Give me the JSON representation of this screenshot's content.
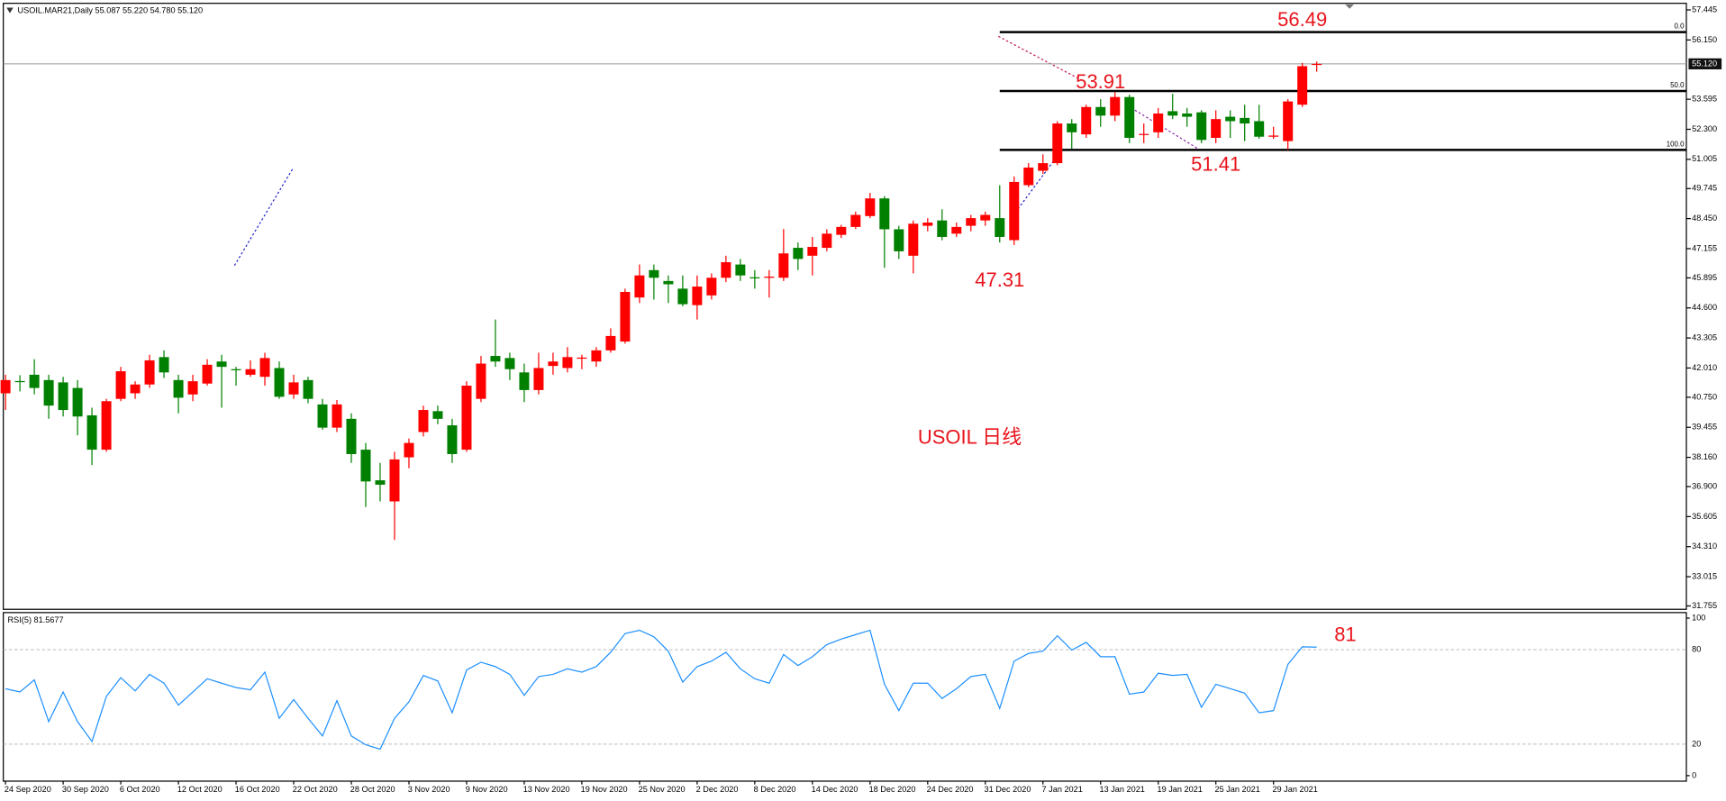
{
  "chart_data": [
    {
      "type": "candlestick",
      "title": "USOIL.MAR21,Daily  55.087 55.220 54.780 55.120",
      "watermark": "USOIL 日线",
      "up_color": "#ff0000",
      "down_color": "#008000",
      "open": [
        40.92,
        41.45,
        41.72,
        41.49,
        41.39,
        41.15,
        39.97,
        38.49,
        40.68,
        40.92,
        41.3,
        42.48,
        41.49,
        40.87,
        41.34,
        42.29,
        41.96,
        41.72,
        41.63,
        42.01,
        40.87,
        41.49,
        40.44,
        39.44,
        39.82,
        38.49,
        37.17,
        36.26,
        38.16,
        39.25,
        40.15,
        39.54,
        38.49,
        40.68,
        42.53,
        42.44,
        41.82,
        41.06,
        42.1,
        42.01,
        42.42,
        42.29,
        42.77,
        43.15,
        45.05,
        46.23,
        45.76,
        45.43,
        44.72,
        45.14,
        45.9,
        46.47,
        45.92,
        45.9,
        45.9,
        47.19,
        46.85,
        47.19,
        47.75,
        48.09,
        48.56,
        49.32,
        47.99,
        46.85,
        48.14,
        48.37,
        47.8,
        48.14,
        48.37,
        48.47,
        47.52,
        49.89,
        50.51,
        50.84,
        52.55,
        52.08,
        53.26,
        52.89,
        53.69,
        52.07,
        52.17,
        53.08,
        52.98,
        53.03,
        51.93,
        52.84,
        52.79,
        52.65,
        51.98,
        51.79,
        53.36,
        55.087
      ],
      "high": [
        41.72,
        41.7,
        42.39,
        41.72,
        41.63,
        41.49,
        40.3,
        40.68,
        42.06,
        41.44,
        42.58,
        42.77,
        41.72,
        41.72,
        42.39,
        42.58,
        42.06,
        42.34,
        42.67,
        42.29,
        41.72,
        41.63,
        40.68,
        40.63,
        40.06,
        38.78,
        37.92,
        38.4,
        38.97,
        40.39,
        40.39,
        39.82,
        41.44,
        42.53,
        44.1,
        42.67,
        42.2,
        42.67,
        42.67,
        42.91,
        42.58,
        42.91,
        43.72,
        45.43,
        46.47,
        46.47,
        46.0,
        46.0,
        46.0,
        46.09,
        46.85,
        46.71,
        46.23,
        46.23,
        48.0,
        47.42,
        47.66,
        47.99,
        48.18,
        48.75,
        49.56,
        49.42,
        48.14,
        48.37,
        48.47,
        48.85,
        48.28,
        48.61,
        48.75,
        49.89,
        50.27,
        50.84,
        51.22,
        52.65,
        52.74,
        53.36,
        53.6,
        53.91,
        53.79,
        52.55,
        53.22,
        53.83,
        53.22,
        53.12,
        53.12,
        53.12,
        53.36,
        53.36,
        52.41,
        53.6,
        55.16,
        55.22
      ],
      "low": [
        40.2,
        41.0,
        40.87,
        39.82,
        39.92,
        39.11,
        37.83,
        38.4,
        40.58,
        40.68,
        41.15,
        41.58,
        40.06,
        40.58,
        41.25,
        40.3,
        41.25,
        41.63,
        41.25,
        40.68,
        40.68,
        40.49,
        39.35,
        39.25,
        37.92,
        36.02,
        36.26,
        34.6,
        37.69,
        39.06,
        39.59,
        37.92,
        38.4,
        40.54,
        42.06,
        41.49,
        40.54,
        40.87,
        41.72,
        41.82,
        41.96,
        42.06,
        42.67,
        43.06,
        44.81,
        44.96,
        44.81,
        44.67,
        44.1,
        44.96,
        45.71,
        45.76,
        45.43,
        45.05,
        45.76,
        46.23,
        46.0,
        47.04,
        47.61,
        48.0,
        48.47,
        46.33,
        46.71,
        46.09,
        47.9,
        47.52,
        47.66,
        47.9,
        48.14,
        47.42,
        47.31,
        49.8,
        50.37,
        50.75,
        51.46,
        51.93,
        52.41,
        52.65,
        51.7,
        51.7,
        51.93,
        52.74,
        52.41,
        51.7,
        51.7,
        51.93,
        51.79,
        51.89,
        51.89,
        51.41,
        53.26,
        54.78
      ],
      "close": [
        41.49,
        41.4,
        41.15,
        40.39,
        40.2,
        39.92,
        38.49,
        40.58,
        41.87,
        41.3,
        42.34,
        41.82,
        40.73,
        41.44,
        42.15,
        42.06,
        41.92,
        41.96,
        42.44,
        40.77,
        41.39,
        40.68,
        39.44,
        40.44,
        38.3,
        37.12,
        36.98,
        38.07,
        38.78,
        40.2,
        39.82,
        38.3,
        41.25,
        42.2,
        42.29,
        41.96,
        41.06,
        42.01,
        42.29,
        42.48,
        42.46,
        42.77,
        43.39,
        45.29,
        46.0,
        45.9,
        45.62,
        44.76,
        45.52,
        45.9,
        46.57,
        46.0,
        45.9,
        45.95,
        46.95,
        46.71,
        47.23,
        47.8,
        48.09,
        48.61,
        49.32,
        47.99,
        47.04,
        48.23,
        48.28,
        47.66,
        48.09,
        48.47,
        48.61,
        47.66,
        50.03,
        50.65,
        50.84,
        52.55,
        52.17,
        53.26,
        52.89,
        53.69,
        51.93,
        52.1,
        52.98,
        52.89,
        52.84,
        51.84,
        52.74,
        52.65,
        52.55,
        51.98,
        52.03,
        53.5,
        55.02,
        55.12
      ],
      "ylim": [
        31.61,
        57.73
      ],
      "yticks": [
        31.755,
        33.015,
        {
          "value": 34.31,
          "label": "34.310"
        },
        35.605,
        {
          "value": 36.9,
          "label": "36.900"
        },
        {
          "value": 38.16,
          "label": "38.160"
        },
        39.455,
        {
          "value": 40.75,
          "label": "40.750"
        },
        {
          "value": 42.01,
          "label": "42.010"
        },
        43.305,
        {
          "value": 44.6,
          "label": "44.600"
        },
        45.895,
        47.155,
        {
          "value": 48.45,
          "label": "48.450"
        },
        49.745,
        51.005,
        {
          "value": 52.3,
          "label": "52.300"
        },
        53.595,
        {
          "value": 56.15,
          "label": "56.150"
        },
        57.445
      ],
      "last_price": {
        "value": 55.12,
        "label": "55.120"
      },
      "fibonacci": {
        "from": 56.49,
        "to": 51.41,
        "levels": [
          {
            "value": 0,
            "label": "0.0"
          },
          {
            "value": 50,
            "label": "50.0"
          },
          {
            "value": 100,
            "label": "100.0"
          }
        ]
      },
      "annotations": [
        53.91,
        47.31
      ]
    },
    {
      "type": "line",
      "title": "RSI(5) 81.5677",
      "categories": [
        "24 Sep 2020",
        null,
        null,
        null,
        "30 Sep 2020",
        null,
        null,
        null,
        "6 Oct 2020",
        null,
        null,
        null,
        "12 Oct 2020",
        null,
        null,
        null,
        "16 Oct 2020",
        null,
        null,
        null,
        "22 Oct 2020",
        null,
        null,
        null,
        "28 Oct 2020",
        null,
        null,
        null,
        "3 Nov 2020",
        null,
        null,
        null,
        "9 Nov 2020",
        null,
        null,
        null,
        "13 Nov 2020",
        null,
        null,
        null,
        "19 Nov 2020",
        null,
        null,
        null,
        "25 Nov 2020",
        null,
        null,
        null,
        "2 Dec 2020",
        null,
        null,
        null,
        "8 Dec 2020",
        null,
        null,
        null,
        "14 Dec 2020",
        null,
        null,
        null,
        "18 Dec 2020",
        null,
        null,
        null,
        "24 Dec 2020",
        null,
        null,
        null,
        "31 Dec 2020",
        null,
        null,
        null,
        "7 Jan 2021",
        null,
        null,
        null,
        "13 Jan 2021",
        null,
        null,
        null,
        "19 Jan 2021",
        null,
        null,
        null,
        "25 Jan 2021",
        null,
        null,
        null,
        "29 Jan 2021",
        null,
        null,
        null
      ],
      "series": [
        {
          "color": "#1e90ff",
          "values": [
            55.2,
            53.1,
            60.8,
            34.3,
            53.1,
            34.3,
            21.7,
            50.3,
            62.2,
            53.8,
            64.3,
            58.7,
            44.8,
            53.1,
            61.5,
            58.7,
            55.9,
            54.5,
            65.7,
            36.4,
            48.3,
            36.4,
            25.2,
            47.6,
            25.2,
            19.6,
            16.8,
            36.4,
            46.9,
            63.6,
            60.1,
            39.9,
            67.1,
            72.0,
            69.2,
            64.3,
            51.0,
            62.9,
            64.3,
            67.8,
            65.7,
            69.2,
            78.3,
            90.2,
            92.3,
            88.1,
            79.0,
            59.4,
            69.2,
            72.7,
            78.3,
            67.8,
            61.5,
            58.7,
            76.9,
            69.9,
            75.5,
            83.2,
            86.7,
            89.5,
            92.3,
            58.0,
            41.3,
            58.7,
            58.7,
            49.0,
            55.2,
            62.9,
            64.3,
            42.7,
            72.7,
            77.6,
            79.0,
            88.8,
            79.7,
            84.6,
            75.5,
            75.5,
            51.7,
            53.1,
            65.0,
            63.6,
            64.3,
            43.4,
            58.0,
            55.2,
            52.4,
            39.9,
            41.3,
            70.6,
            81.8,
            81.57
          ]
        }
      ],
      "ylim": [
        0,
        100
      ],
      "yticks": [
        0,
        20,
        80,
        100
      ],
      "annotations": [
        81
      ]
    }
  ]
}
